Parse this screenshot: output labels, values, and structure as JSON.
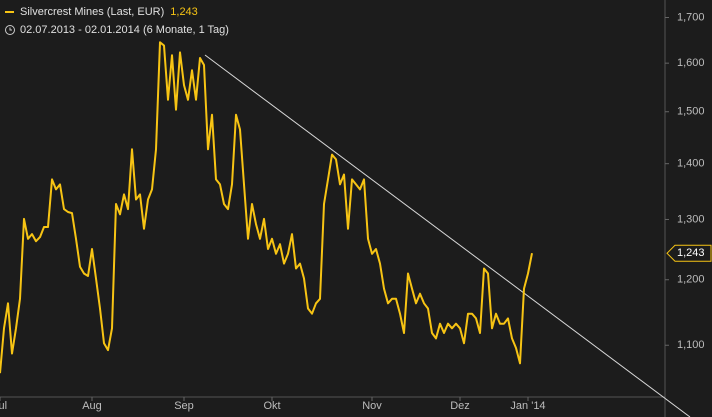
{
  "chart_data": {
    "type": "line",
    "title": "Silvercrest Mines (Last, EUR)",
    "last_label": "1,243",
    "subtitle": "02.07.2013 - 02.01.2014 (6 Monate, 1 Tag)",
    "categories": [
      "Jul",
      null,
      null,
      null,
      null,
      null,
      null,
      null,
      null,
      null,
      null,
      null,
      null,
      null,
      null,
      null,
      null,
      null,
      null,
      null,
      null,
      null,
      null,
      "Aug",
      null,
      null,
      null,
      null,
      null,
      null,
      null,
      null,
      null,
      null,
      null,
      null,
      null,
      null,
      null,
      null,
      null,
      null,
      null,
      null,
      null,
      null,
      "Sep",
      null,
      null,
      null,
      null,
      null,
      null,
      null,
      null,
      null,
      null,
      null,
      null,
      null,
      null,
      null,
      null,
      null,
      null,
      null,
      null,
      null,
      "Okt",
      null,
      null,
      null,
      null,
      null,
      null,
      null,
      null,
      null,
      null,
      null,
      null,
      null,
      null,
      null,
      null,
      null,
      null,
      null,
      null,
      null,
      null,
      null,
      null,
      "Nov",
      null,
      null,
      null,
      null,
      null,
      null,
      null,
      null,
      null,
      null,
      null,
      null,
      null,
      null,
      null,
      null,
      null,
      null,
      null,
      null,
      null,
      "Dez",
      null,
      null,
      null,
      null,
      null,
      null,
      null,
      null,
      null,
      null,
      null,
      null,
      null,
      null,
      null,
      null,
      "Jan '14",
      null
    ],
    "series": [
      {
        "name": "Silvercrest Mines (Last, EUR)",
        "color": "#f7c414",
        "values": [
          1060,
          1125,
          1163,
          1088,
          1125,
          1170,
          1301,
          1267,
          1275,
          1263,
          1270,
          1287,
          1287,
          1371,
          1353,
          1362,
          1318,
          1313,
          1311,
          1267,
          1221,
          1210,
          1206,
          1250,
          1202,
          1155,
          1103,
          1093,
          1125,
          1327,
          1309,
          1344,
          1318,
          1427,
          1335,
          1344,
          1284,
          1335,
          1353,
          1427,
          1645,
          1638,
          1524,
          1617,
          1504,
          1623,
          1554,
          1524,
          1585,
          1524,
          1611,
          1596,
          1427,
          1494,
          1371,
          1362,
          1327,
          1318,
          1362,
          1494,
          1465,
          1362,
          1267,
          1327,
          1292,
          1267,
          1301,
          1250,
          1267,
          1242,
          1258,
          1226,
          1242,
          1275,
          1218,
          1226,
          1202,
          1155,
          1147,
          1163,
          1170,
          1327,
          1371,
          1417,
          1408,
          1362,
          1380,
          1284,
          1371,
          1362,
          1353,
          1371,
          1267,
          1242,
          1250,
          1226,
          1186,
          1163,
          1170,
          1170,
          1147,
          1118,
          1210,
          1186,
          1163,
          1178,
          1163,
          1155,
          1118,
          1110,
          1132,
          1118,
          1132,
          1125,
          1132,
          1125,
          1103,
          1147,
          1147,
          1140,
          1118,
          1218,
          1210,
          1125,
          1147,
          1132,
          1132,
          1140,
          1110,
          1096,
          1074,
          1186,
          1210,
          1243
        ]
      }
    ],
    "ylim": [
      1000,
      1740
    ],
    "log_y": true,
    "yticks": [
      {
        "value": 1100,
        "label": "1,100"
      },
      {
        "value": 1200,
        "label": "1,200"
      },
      {
        "value": 1300,
        "label": "1,300"
      },
      {
        "value": 1400,
        "label": "1,400"
      },
      {
        "value": 1500,
        "label": "1,500"
      },
      {
        "value": 1600,
        "label": "1,600"
      },
      {
        "value": 1700,
        "label": "1,700"
      }
    ]
  }
}
